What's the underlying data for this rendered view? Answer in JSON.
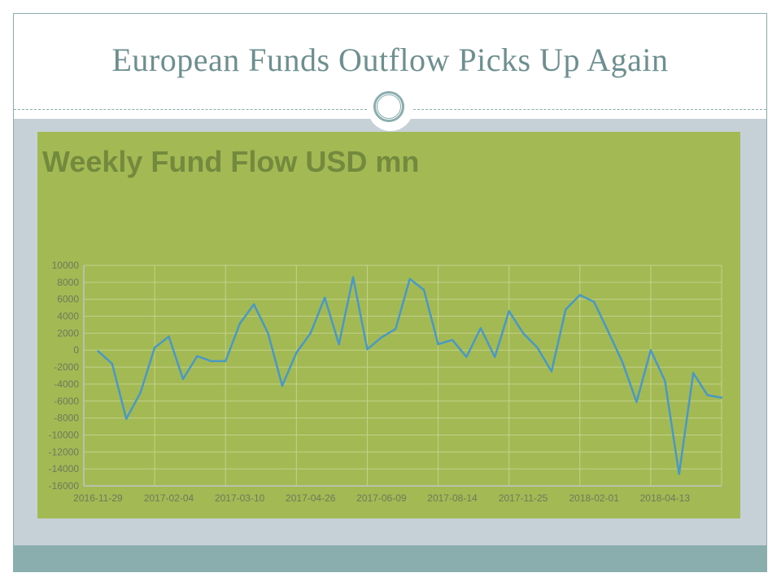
{
  "slide": {
    "title": "European Funds Outflow Picks Up Again"
  },
  "chart_data": {
    "type": "line",
    "title": "Weekly Fund Flow USD mn",
    "xlabel": "",
    "ylabel": "",
    "ylim": [
      -16000,
      10000
    ],
    "yticks": [
      "10000",
      "8000",
      "6000",
      "4000",
      "2000",
      "0",
      "-2000",
      "-4000",
      "-6000",
      "-8000",
      "-10000",
      "-12000",
      "-14000",
      "-16000"
    ],
    "xtick_labels": [
      "2016-11-29",
      "2017-02-04",
      "2017-03-10",
      "2017-04-26",
      "2017-06-09",
      "2017-08-14",
      "2017-11-25",
      "2018-02-01",
      "2018-04-13"
    ],
    "grid": true,
    "line_color": "#4a98c4",
    "values": [
      -100,
      -1600,
      -8100,
      -5000,
      300,
      1600,
      -3400,
      -700,
      -1300,
      -1300,
      3100,
      5400,
      2000,
      -4200,
      -300,
      2000,
      6200,
      700,
      8600,
      100,
      1500,
      2500,
      8400,
      7100,
      700,
      1200,
      -800,
      2600,
      -800,
      4600,
      2000,
      300,
      -2500,
      4800,
      6500,
      5700,
      2200,
      -1400,
      -6100,
      0,
      -3600,
      -14600,
      -2700,
      -5300,
      -5600
    ]
  }
}
